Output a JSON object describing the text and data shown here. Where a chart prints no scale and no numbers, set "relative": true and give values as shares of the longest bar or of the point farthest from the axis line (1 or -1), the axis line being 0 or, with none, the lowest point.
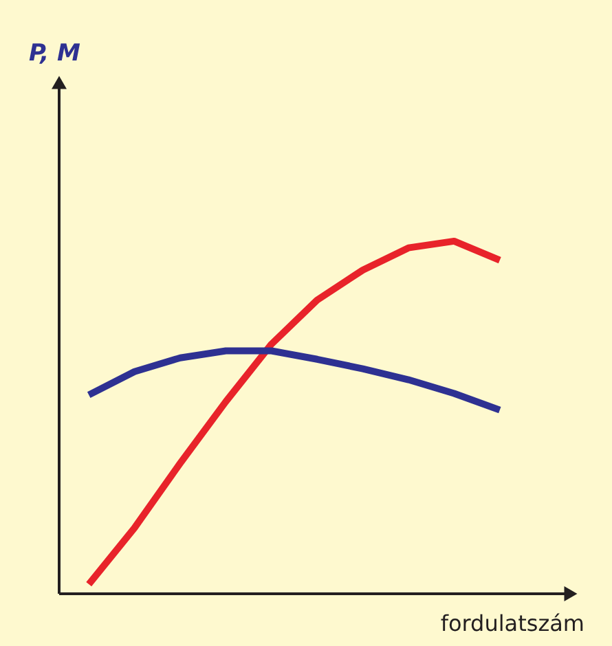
{
  "chart_data": {
    "type": "line",
    "relative": true,
    "annotations": [
      "P, M"
    ],
    "xlabel": "fordulatszám",
    "grid": false,
    "line_style": "solid",
    "marker": "none",
    "categories": [
      null,
      null,
      null,
      null,
      null,
      null,
      null,
      null,
      null,
      null
    ],
    "series": [
      {
        "color": "#e8232a",
        "values": [
          0.027,
          0.187,
          0.37,
          0.545,
          0.708,
          0.833,
          0.918,
          0.981,
          1,
          0.946
        ]
      },
      {
        "color": "#2e3192",
        "values": [
          0.564,
          0.63,
          0.669,
          0.689,
          0.689,
          0.665,
          0.638,
          0.607,
          0.568,
          0.521
        ]
      }
    ]
  }
}
